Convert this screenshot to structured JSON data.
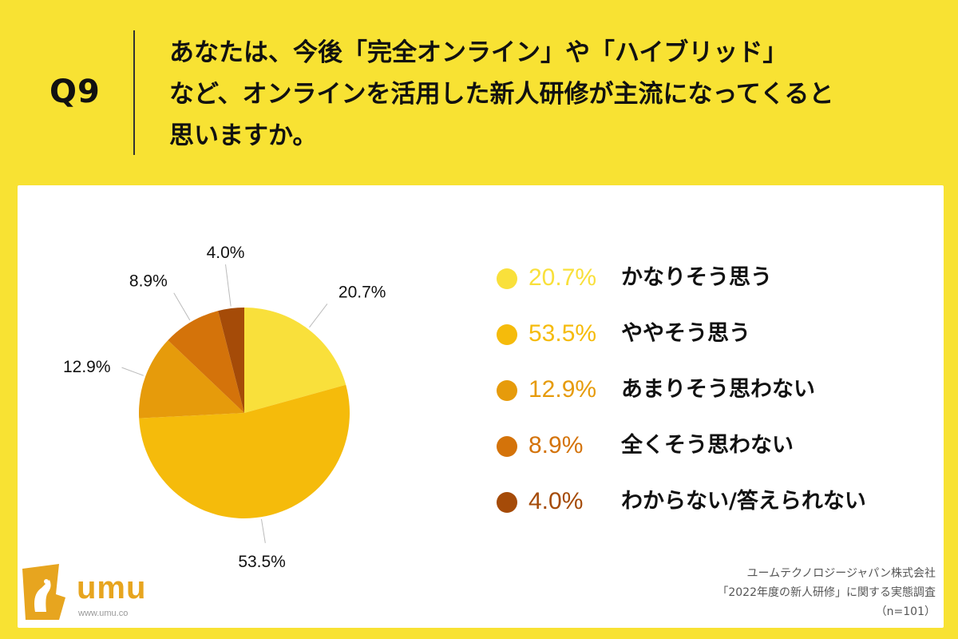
{
  "header": {
    "q_label": "Q9",
    "question_lines": [
      "あなたは、今後「完全オンライン」や「ハイブリッド」",
      "など、オンラインを活用した新人研修が主流になってくると",
      "思いますか。"
    ]
  },
  "chart_data": {
    "type": "pie",
    "title": "",
    "start_angle_deg": 0,
    "direction": "clockwise",
    "slices": [
      {
        "label": "かなりそう思う",
        "value": 20.7,
        "value_label": "20.7%",
        "color": "#f9e03b"
      },
      {
        "label": "ややそう思う",
        "value": 53.5,
        "value_label": "53.5%",
        "color": "#f5bb0b"
      },
      {
        "label": "あまりそう思わない",
        "value": 12.9,
        "value_label": "12.9%",
        "color": "#e69b0b"
      },
      {
        "label": "全くそう思わない",
        "value": 8.9,
        "value_label": "8.9%",
        "color": "#d4730a"
      },
      {
        "label": "わからない/答えられない",
        "value": 4.0,
        "value_label": "4.0%",
        "color": "#a54b08"
      }
    ],
    "legend": "right"
  },
  "logo": {
    "word": "umu",
    "url": "www.umu.co",
    "color": "#e7a51f"
  },
  "source": {
    "lines": [
      "ユームテクノロジージャパン株式会社",
      "「2022年度の新人研修」に関する実態調査",
      "（n=101）"
    ]
  }
}
